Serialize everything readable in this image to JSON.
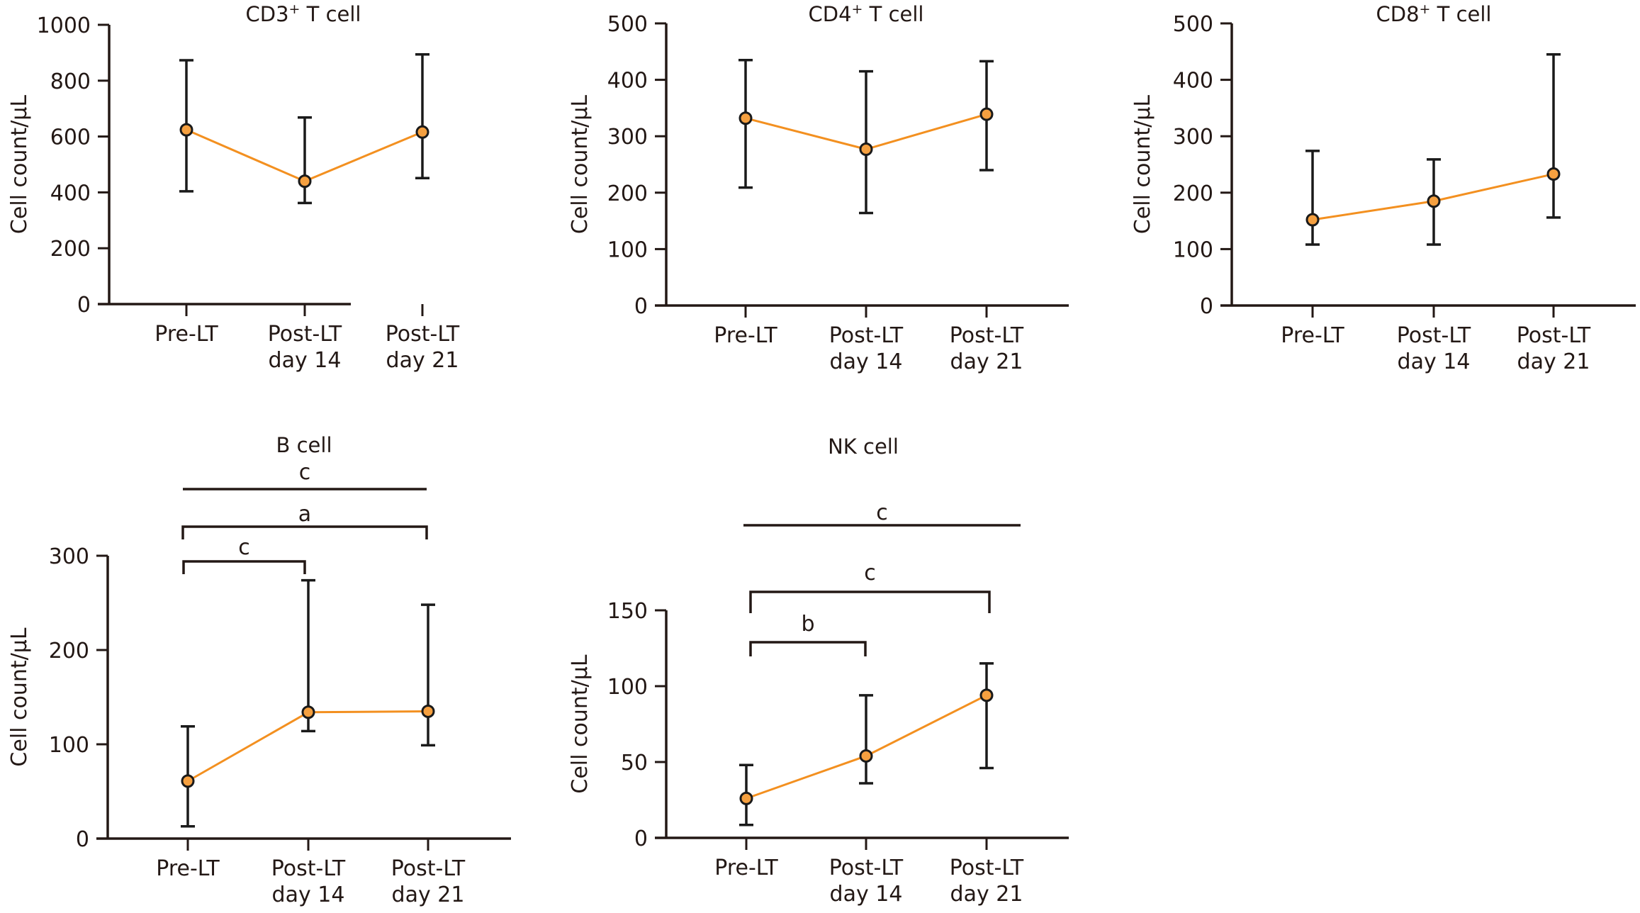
{
  "figure": {
    "y_axis_label": "Cell count/μL",
    "colors": {
      "line": "#f39020",
      "marker_fill": "#f5a040",
      "marker_stroke": "#1a1a1a",
      "axis": "#231815"
    }
  },
  "chart_data": [
    {
      "id": "cd3",
      "type": "line",
      "title": "CD3",
      "title_sup": "+",
      "title_suffix": " T cell",
      "xlabel": "",
      "ylabel": "Cell count/μL",
      "categories": [
        [
          "Pre-LT"
        ],
        [
          "Post-LT",
          "day 14"
        ],
        [
          "Post-LT",
          "day 21"
        ]
      ],
      "ylim": [
        0,
        1000
      ],
      "yticks": [
        0,
        200,
        400,
        600,
        800,
        1000
      ],
      "grid": false,
      "series": [
        {
          "name": "mean",
          "values": [
            624,
            440,
            616
          ],
          "error_upper": [
            873,
            668,
            894
          ],
          "error_lower": [
            404,
            362,
            451
          ]
        }
      ],
      "significance": []
    },
    {
      "id": "cd4",
      "type": "line",
      "title": "CD4",
      "title_sup": "+",
      "title_suffix": " T cell",
      "xlabel": "",
      "ylabel": "Cell count/μL",
      "categories": [
        [
          "Pre-LT"
        ],
        [
          "Post-LT",
          "day 14"
        ],
        [
          "Post-LT",
          "day 21"
        ]
      ],
      "ylim": [
        0,
        500
      ],
      "yticks": [
        0,
        100,
        200,
        300,
        400,
        500
      ],
      "grid": false,
      "series": [
        {
          "name": "mean",
          "values": [
            332,
            277,
            339
          ],
          "error_upper": [
            435,
            415,
            433
          ],
          "error_lower": [
            209,
            164,
            240
          ]
        }
      ],
      "significance": []
    },
    {
      "id": "cd8",
      "type": "line",
      "title": "CD8",
      "title_sup": "+",
      "title_suffix": " T cell",
      "xlabel": "",
      "ylabel": "Cell count/μL",
      "categories": [
        [
          "Pre-LT"
        ],
        [
          "Post-LT",
          "day 14"
        ],
        [
          "Post-LT",
          "day 21"
        ]
      ],
      "ylim": [
        0,
        500
      ],
      "yticks": [
        0,
        100,
        200,
        300,
        400,
        500
      ],
      "grid": false,
      "series": [
        {
          "name": "mean",
          "values": [
            152,
            185,
            233
          ],
          "error_upper": [
            274,
            259,
            445
          ],
          "error_lower": [
            108,
            108,
            156
          ]
        }
      ],
      "significance": []
    },
    {
      "id": "bcell",
      "type": "line",
      "title": "B cell",
      "title_sup": "",
      "title_suffix": "",
      "xlabel": "",
      "ylabel": "Cell count/μL",
      "categories": [
        [
          "Pre-LT"
        ],
        [
          "Post-LT",
          "day 14"
        ],
        [
          "Post-LT",
          "day 21"
        ]
      ],
      "ylim": [
        0,
        300
      ],
      "yticks": [
        0,
        100,
        200,
        300
      ],
      "grid": false,
      "series": [
        {
          "name": "mean",
          "values": [
            61,
            134,
            135
          ],
          "error_upper": [
            119,
            274,
            248
          ],
          "error_lower": [
            13,
            114,
            99
          ]
        }
      ],
      "significance": [
        {
          "label": "c",
          "from": 0,
          "to": 2,
          "style": "line"
        },
        {
          "label": "a",
          "from": 0,
          "to": 2,
          "style": "bracket"
        },
        {
          "label": "c",
          "from": 0,
          "to": 1,
          "style": "bracket"
        }
      ]
    },
    {
      "id": "nkcell",
      "type": "line",
      "title": "NK cell",
      "title_sup": "",
      "title_suffix": "",
      "xlabel": "",
      "ylabel": "Cell count/μL",
      "categories": [
        [
          "Pre-LT"
        ],
        [
          "Post-LT",
          "day 14"
        ],
        [
          "Post-LT",
          "day 21"
        ]
      ],
      "ylim": [
        0,
        150
      ],
      "yticks": [
        0,
        50,
        100,
        150
      ],
      "grid": false,
      "series": [
        {
          "name": "mean",
          "values": [
            26,
            54,
            94
          ],
          "error_upper": [
            48,
            94,
            115
          ],
          "error_lower": [
            8.5,
            36,
            46
          ]
        }
      ],
      "significance": [
        {
          "label": "c",
          "from": 0,
          "to": 2,
          "style": "line"
        },
        {
          "label": "c",
          "from": 0,
          "to": 2,
          "style": "bracket"
        },
        {
          "label": "b",
          "from": 0,
          "to": 1,
          "style": "bracket"
        }
      ]
    }
  ]
}
